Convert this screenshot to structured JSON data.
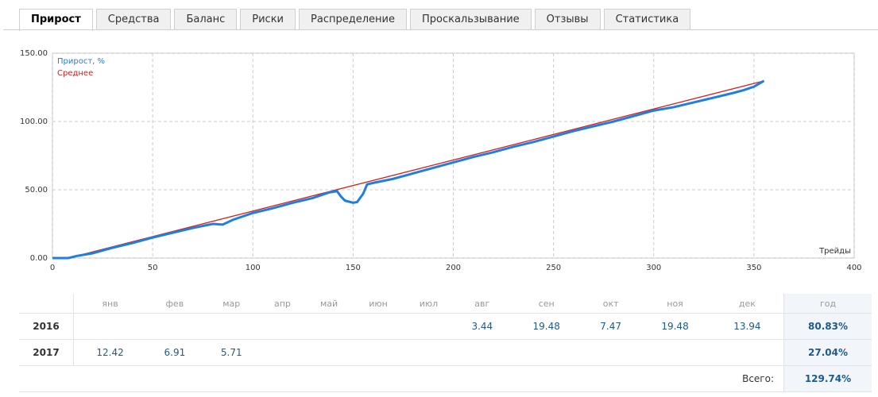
{
  "tabs": [
    "Прирост",
    "Средства",
    "Баланс",
    "Риски",
    "Распределение",
    "Проскальзывание",
    "Отзывы",
    "Статистика"
  ],
  "chart_data": {
    "type": "line",
    "x_label": "Трейды",
    "xlim": [
      0,
      400
    ],
    "xticks": [
      0,
      50,
      100,
      150,
      200,
      250,
      300,
      350,
      400
    ],
    "ylim": [
      0,
      150
    ],
    "yticks": [
      {
        "value": 0,
        "label": "0.00"
      },
      {
        "value": 50,
        "label": "50.00"
      },
      {
        "value": 100,
        "label": "100.00"
      },
      {
        "value": 150,
        "label": "150.00"
      }
    ],
    "grid": true,
    "legend": "top-left",
    "series": [
      {
        "name": "Прирост, %",
        "color": "#1e7fe0",
        "x": [
          0,
          8,
          12,
          20,
          30,
          40,
          50,
          60,
          70,
          80,
          85,
          90,
          100,
          110,
          120,
          130,
          138,
          142,
          144,
          146,
          150,
          152,
          155,
          157,
          160,
          170,
          180,
          190,
          200,
          210,
          220,
          230,
          240,
          250,
          260,
          270,
          280,
          290,
          300,
          310,
          320,
          330,
          340,
          345,
          350,
          355
        ],
        "values": [
          0,
          0,
          1.5,
          3.5,
          7.5,
          11,
          15,
          18.5,
          22,
          25,
          24.5,
          28,
          33,
          36.5,
          40.5,
          44,
          48,
          49,
          45,
          42,
          40.5,
          41,
          47,
          54,
          55,
          58,
          62,
          66,
          70,
          74,
          77.5,
          81.5,
          85,
          89,
          93,
          96.5,
          100,
          104,
          108,
          110.5,
          114,
          117.5,
          121,
          123,
          125.5,
          129.74
        ]
      },
      {
        "name": "Среднее",
        "color": "#d42020",
        "x": [
          8,
          355
        ],
        "values": [
          0,
          129.74
        ]
      }
    ]
  },
  "table": {
    "months": [
      "янв",
      "фев",
      "мар",
      "апр",
      "май",
      "июн",
      "июл",
      "авг",
      "сен",
      "окт",
      "ноя",
      "дек"
    ],
    "year_header": "год",
    "rows": [
      {
        "year": "2016",
        "months": [
          null,
          null,
          null,
          null,
          null,
          null,
          null,
          "3.44",
          "19.48",
          "7.47",
          "19.48",
          "13.94"
        ],
        "total": "80.83%"
      },
      {
        "year": "2017",
        "months": [
          "12.42",
          "6.91",
          "5.71",
          null,
          null,
          null,
          null,
          null,
          null,
          null,
          null,
          null
        ],
        "total": "27.04%"
      }
    ],
    "total_label": "Всего:",
    "total_value": "129.74%"
  }
}
